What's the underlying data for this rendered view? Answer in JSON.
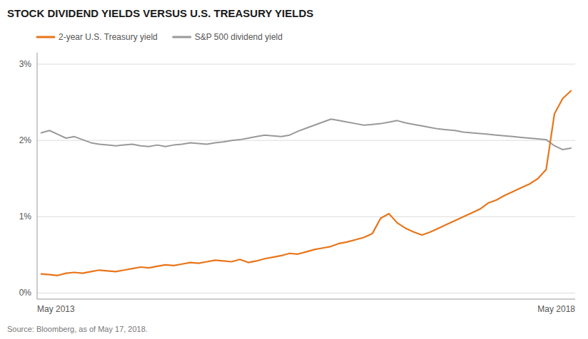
{
  "chart_data": {
    "type": "line",
    "title": "STOCK DIVIDEND YIELDS VERSUS U.S. TREASURY YIELDS",
    "annotations": [
      "Source: Bloomberg, as of May 17, 2018."
    ],
    "categories": [
      "May 2013",
      null,
      null,
      null,
      null,
      null,
      null,
      null,
      null,
      null,
      null,
      null,
      null,
      null,
      null,
      null,
      null,
      null,
      null,
      null,
      null,
      null,
      null,
      null,
      null,
      null,
      null,
      null,
      null,
      null,
      null,
      null,
      null,
      null,
      null,
      null,
      null,
      null,
      null,
      null,
      null,
      null,
      null,
      null,
      null,
      null,
      null,
      null,
      null,
      null,
      null,
      null,
      null,
      null,
      null,
      null,
      null,
      null,
      null,
      null,
      null,
      null,
      null,
      null,
      "May 2018"
    ],
    "series": [
      {
        "name": "2-year U.S. Treasury yield",
        "color": "#E8751A",
        "values": [
          0.25,
          0.24,
          0.23,
          0.26,
          0.27,
          0.26,
          0.28,
          0.3,
          0.29,
          0.28,
          0.3,
          0.32,
          0.34,
          0.33,
          0.35,
          0.37,
          0.36,
          0.38,
          0.4,
          0.39,
          0.41,
          0.43,
          0.42,
          0.41,
          0.44,
          0.4,
          0.42,
          0.45,
          0.47,
          0.49,
          0.52,
          0.51,
          0.54,
          0.57,
          0.59,
          0.61,
          0.65,
          0.67,
          0.7,
          0.73,
          0.78,
          0.98,
          1.04,
          0.92,
          0.85,
          0.8,
          0.76,
          0.8,
          0.85,
          0.9,
          0.95,
          1.0,
          1.05,
          1.1,
          1.18,
          1.22,
          1.28,
          1.33,
          1.38,
          1.43,
          1.5,
          1.62,
          2.35,
          2.55,
          2.65
        ]
      },
      {
        "name": "S&P 500 dividend yield",
        "color": "#999999",
        "values": [
          2.1,
          2.13,
          2.08,
          2.03,
          2.05,
          2.01,
          1.97,
          1.95,
          1.94,
          1.93,
          1.94,
          1.95,
          1.93,
          1.92,
          1.94,
          1.92,
          1.94,
          1.95,
          1.97,
          1.96,
          1.95,
          1.97,
          1.98,
          2.0,
          2.01,
          2.03,
          2.05,
          2.07,
          2.06,
          2.05,
          2.07,
          2.12,
          2.16,
          2.2,
          2.24,
          2.28,
          2.26,
          2.24,
          2.22,
          2.2,
          2.21,
          2.22,
          2.24,
          2.26,
          2.23,
          2.21,
          2.19,
          2.17,
          2.15,
          2.14,
          2.13,
          2.11,
          2.1,
          2.09,
          2.08,
          2.07,
          2.06,
          2.05,
          2.04,
          2.03,
          2.02,
          2.01,
          1.93,
          1.88,
          1.9
        ]
      }
    ],
    "ylim": [
      -0.08,
      3.15
    ],
    "yticks": [
      {
        "value": 0,
        "label": "0%"
      },
      {
        "value": 1,
        "label": "1%"
      },
      {
        "value": 2,
        "label": "2%"
      },
      {
        "value": 3,
        "label": "3%"
      }
    ],
    "grid": true,
    "legend": "upper left"
  }
}
